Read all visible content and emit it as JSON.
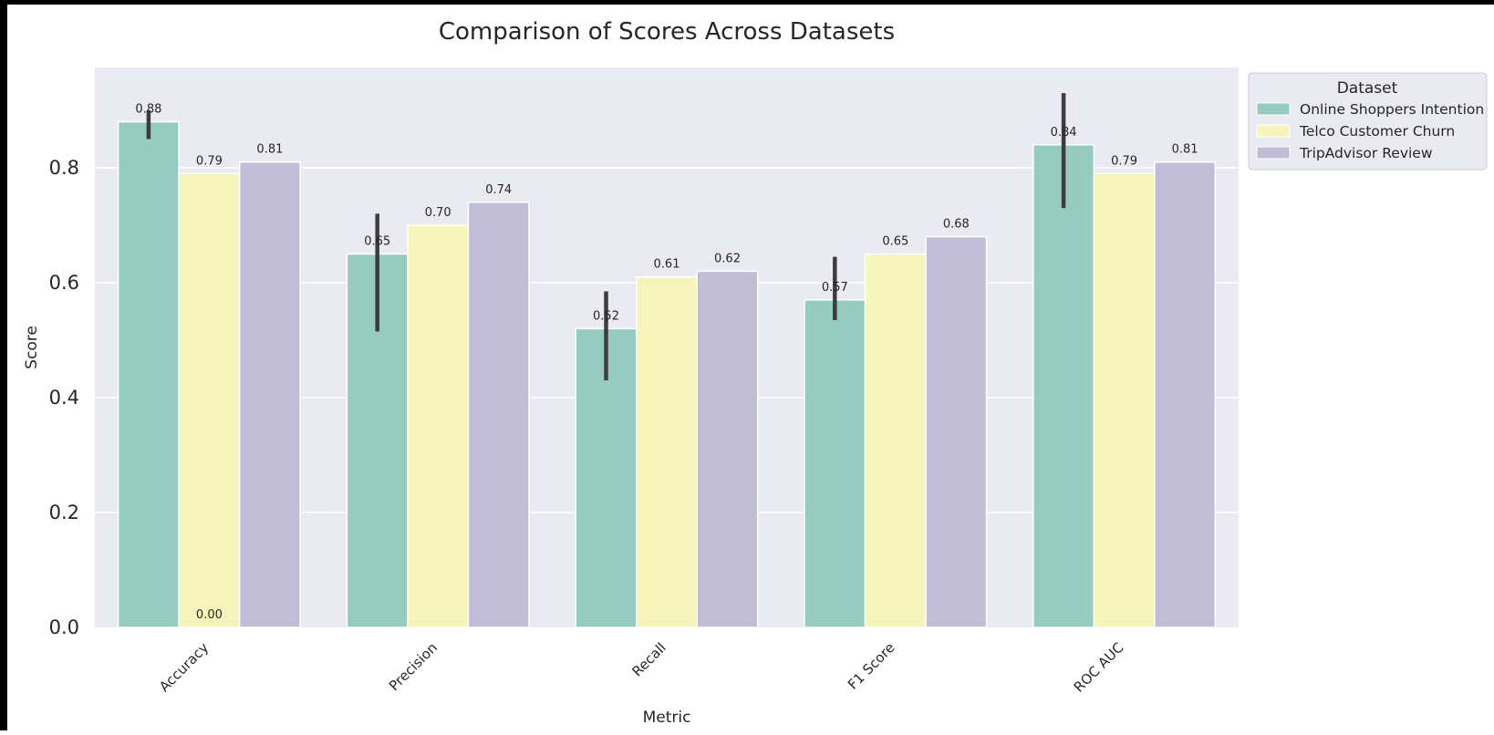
{
  "chart_data": {
    "type": "bar",
    "title": "Comparison of Scores Across Datasets",
    "xlabel": "Metric",
    "ylabel": "Score",
    "categories": [
      "Accuracy",
      "Precision",
      "Recall",
      "F1 Score",
      "ROC AUC"
    ],
    "ylim": [
      0,
      0.97
    ],
    "yticks": [
      "0.0",
      "0.2",
      "0.4",
      "0.6",
      "0.8"
    ],
    "grid": true,
    "legend": {
      "title": "Dataset",
      "position": "upper right, outside plot"
    },
    "series": [
      {
        "name": "Online Shoppers Intention",
        "color": "#96cbc0",
        "values": [
          0.88,
          0.65,
          0.52,
          0.57,
          0.84
        ],
        "labels": [
          "0.88",
          "0.65",
          "0.52",
          "0.57",
          "0.84"
        ],
        "error_low": [
          0.85,
          0.515,
          0.43,
          0.535,
          0.73
        ],
        "error_high": [
          0.9,
          0.72,
          0.585,
          0.645,
          0.93
        ]
      },
      {
        "name": "Telco Customer Churn",
        "color": "#f5f4ba",
        "values": [
          0.79,
          0.7,
          0.61,
          0.65,
          0.79
        ],
        "labels": [
          "0.79",
          "0.70",
          "0.61",
          "0.65",
          "0.79"
        ]
      },
      {
        "name": "TripAdvisor Review",
        "color": "#c2bdd7",
        "values": [
          0.81,
          0.74,
          0.62,
          0.68,
          0.81
        ],
        "labels": [
          "0.81",
          "0.74",
          "0.62",
          "0.68",
          "0.81"
        ]
      }
    ],
    "extra_annotations": [
      {
        "text": "0.00",
        "category": "Accuracy",
        "series": "Telco Customer Churn",
        "value": 0.0
      }
    ],
    "background_color": "#eaeaf2",
    "error_bar_color": "#3d3d3d"
  }
}
